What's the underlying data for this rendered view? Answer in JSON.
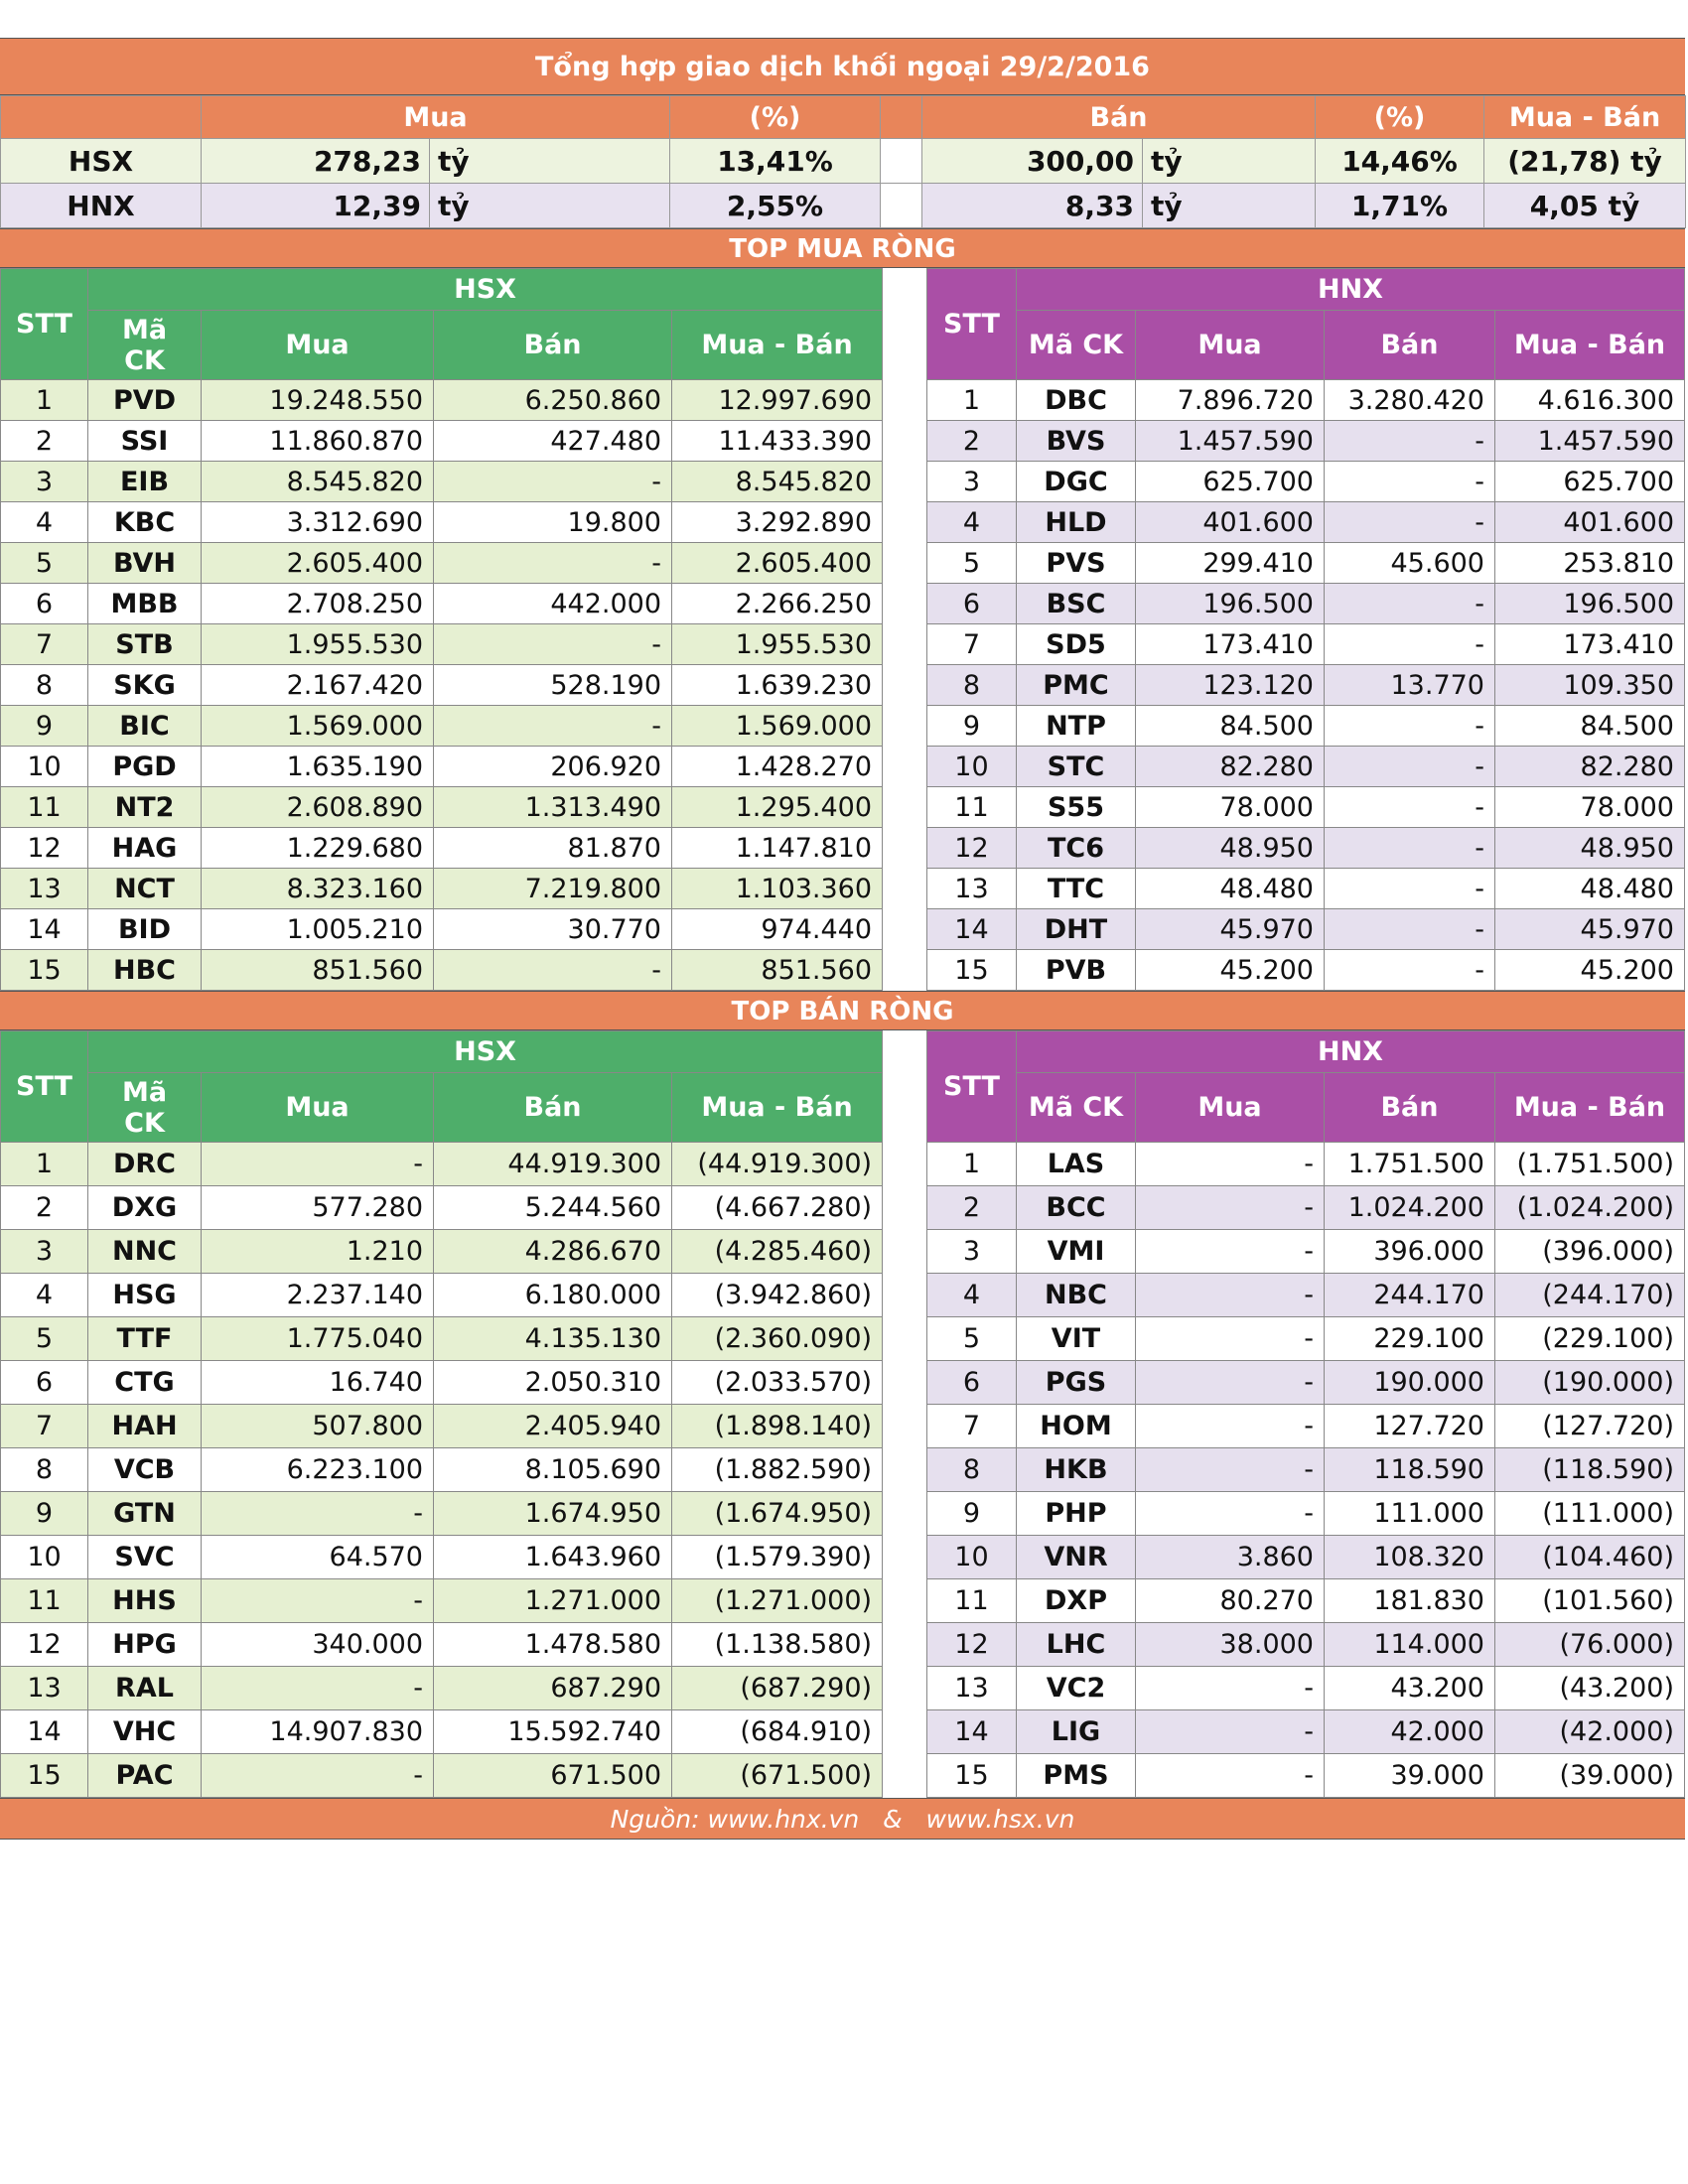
{
  "title": "Tổng hợp giao dịch khối ngoại 29/2/2016",
  "summary": {
    "headers": {
      "mua": "Mua",
      "pct1": "(%)",
      "ban": "Bán",
      "pct2": "(%)",
      "net": "Mua - Bán"
    },
    "hsx": {
      "label": "HSX",
      "mua": "278,23",
      "mua_unit": "tỷ",
      "mua_pct": "13,41%",
      "ban": "300,00",
      "ban_unit": "tỷ",
      "ban_pct": "14,46%",
      "net": "(21,78) tỷ"
    },
    "hnx": {
      "label": "HNX",
      "mua": "12,39",
      "mua_unit": "tỷ",
      "mua_pct": "2,55%",
      "ban": "8,33",
      "ban_unit": "tỷ",
      "ban_pct": "1,71%",
      "net": "4,05 tỷ"
    }
  },
  "top_buy": {
    "title": "TOP MUA RÒNG",
    "hsx": {
      "exchange": "HSX",
      "headers": {
        "stt": "STT",
        "code": "Mã CK",
        "mua": "Mua",
        "ban": "Bán",
        "net": "Mua - Bán"
      },
      "rows": [
        [
          "1",
          "PVD",
          "19.248.550",
          "6.250.860",
          "12.997.690"
        ],
        [
          "2",
          "SSI",
          "11.860.870",
          "427.480",
          "11.433.390"
        ],
        [
          "3",
          "EIB",
          "8.545.820",
          "-",
          "8.545.820"
        ],
        [
          "4",
          "KBC",
          "3.312.690",
          "19.800",
          "3.292.890"
        ],
        [
          "5",
          "BVH",
          "2.605.400",
          "-",
          "2.605.400"
        ],
        [
          "6",
          "MBB",
          "2.708.250",
          "442.000",
          "2.266.250"
        ],
        [
          "7",
          "STB",
          "1.955.530",
          "-",
          "1.955.530"
        ],
        [
          "8",
          "SKG",
          "2.167.420",
          "528.190",
          "1.639.230"
        ],
        [
          "9",
          "BIC",
          "1.569.000",
          "-",
          "1.569.000"
        ],
        [
          "10",
          "PGD",
          "1.635.190",
          "206.920",
          "1.428.270"
        ],
        [
          "11",
          "NT2",
          "2.608.890",
          "1.313.490",
          "1.295.400"
        ],
        [
          "12",
          "HAG",
          "1.229.680",
          "81.870",
          "1.147.810"
        ],
        [
          "13",
          "NCT",
          "8.323.160",
          "7.219.800",
          "1.103.360"
        ],
        [
          "14",
          "BID",
          "1.005.210",
          "30.770",
          "974.440"
        ],
        [
          "15",
          "HBC",
          "851.560",
          "-",
          "851.560"
        ]
      ]
    },
    "hnx": {
      "exchange": "HNX",
      "headers": {
        "stt": "STT",
        "code": "Mã CK",
        "mua": "Mua",
        "ban": "Bán",
        "net": "Mua - Bán"
      },
      "rows": [
        [
          "1",
          "DBC",
          "7.896.720",
          "3.280.420",
          "4.616.300"
        ],
        [
          "2",
          "BVS",
          "1.457.590",
          "-",
          "1.457.590"
        ],
        [
          "3",
          "DGC",
          "625.700",
          "-",
          "625.700"
        ],
        [
          "4",
          "HLD",
          "401.600",
          "-",
          "401.600"
        ],
        [
          "5",
          "PVS",
          "299.410",
          "45.600",
          "253.810"
        ],
        [
          "6",
          "BSC",
          "196.500",
          "-",
          "196.500"
        ],
        [
          "7",
          "SD5",
          "173.410",
          "-",
          "173.410"
        ],
        [
          "8",
          "PMC",
          "123.120",
          "13.770",
          "109.350"
        ],
        [
          "9",
          "NTP",
          "84.500",
          "-",
          "84.500"
        ],
        [
          "10",
          "STC",
          "82.280",
          "-",
          "82.280"
        ],
        [
          "11",
          "S55",
          "78.000",
          "-",
          "78.000"
        ],
        [
          "12",
          "TC6",
          "48.950",
          "-",
          "48.950"
        ],
        [
          "13",
          "TTC",
          "48.480",
          "-",
          "48.480"
        ],
        [
          "14",
          "DHT",
          "45.970",
          "-",
          "45.970"
        ],
        [
          "15",
          "PVB",
          "45.200",
          "-",
          "45.200"
        ]
      ]
    }
  },
  "top_sell": {
    "title": "TOP BÁN RÒNG",
    "hsx": {
      "exchange": "HSX",
      "headers": {
        "stt": "STT",
        "code": "Mã CK",
        "mua": "Mua",
        "ban": "Bán",
        "net": "Mua - Bán"
      },
      "rows": [
        [
          "1",
          "DRC",
          "-",
          "44.919.300",
          "(44.919.300)"
        ],
        [
          "2",
          "DXG",
          "577.280",
          "5.244.560",
          "(4.667.280)"
        ],
        [
          "3",
          "NNC",
          "1.210",
          "4.286.670",
          "(4.285.460)"
        ],
        [
          "4",
          "HSG",
          "2.237.140",
          "6.180.000",
          "(3.942.860)"
        ],
        [
          "5",
          "TTF",
          "1.775.040",
          "4.135.130",
          "(2.360.090)"
        ],
        [
          "6",
          "CTG",
          "16.740",
          "2.050.310",
          "(2.033.570)"
        ],
        [
          "7",
          "HAH",
          "507.800",
          "2.405.940",
          "(1.898.140)"
        ],
        [
          "8",
          "VCB",
          "6.223.100",
          "8.105.690",
          "(1.882.590)"
        ],
        [
          "9",
          "GTN",
          "-",
          "1.674.950",
          "(1.674.950)"
        ],
        [
          "10",
          "SVC",
          "64.570",
          "1.643.960",
          "(1.579.390)"
        ],
        [
          "11",
          "HHS",
          "-",
          "1.271.000",
          "(1.271.000)"
        ],
        [
          "12",
          "HPG",
          "340.000",
          "1.478.580",
          "(1.138.580)"
        ],
        [
          "13",
          "RAL",
          "-",
          "687.290",
          "(687.290)"
        ],
        [
          "14",
          "VHC",
          "14.907.830",
          "15.592.740",
          "(684.910)"
        ],
        [
          "15",
          "PAC",
          "-",
          "671.500",
          "(671.500)"
        ]
      ]
    },
    "hnx": {
      "exchange": "HNX",
      "headers": {
        "stt": "STT",
        "code": "Mã CK",
        "mua": "Mua",
        "ban": "Bán",
        "net": "Mua - Bán"
      },
      "rows": [
        [
          "1",
          "LAS",
          "-",
          "1.751.500",
          "(1.751.500)"
        ],
        [
          "2",
          "BCC",
          "-",
          "1.024.200",
          "(1.024.200)"
        ],
        [
          "3",
          "VMI",
          "-",
          "396.000",
          "(396.000)"
        ],
        [
          "4",
          "NBC",
          "-",
          "244.170",
          "(244.170)"
        ],
        [
          "5",
          "VIT",
          "-",
          "229.100",
          "(229.100)"
        ],
        [
          "6",
          "PGS",
          "-",
          "190.000",
          "(190.000)"
        ],
        [
          "7",
          "HOM",
          "-",
          "127.720",
          "(127.720)"
        ],
        [
          "8",
          "HKB",
          "-",
          "118.590",
          "(118.590)"
        ],
        [
          "9",
          "PHP",
          "-",
          "111.000",
          "(111.000)"
        ],
        [
          "10",
          "VNR",
          "3.860",
          "108.320",
          "(104.460)"
        ],
        [
          "11",
          "DXP",
          "80.270",
          "181.830",
          "(101.560)"
        ],
        [
          "12",
          "LHC",
          "38.000",
          "114.000",
          "(76.000)"
        ],
        [
          "13",
          "VC2",
          "-",
          "43.200",
          "(43.200)"
        ],
        [
          "14",
          "LIG",
          "-",
          "42.000",
          "(42.000)"
        ],
        [
          "15",
          "PMS",
          "-",
          "39.000",
          "(39.000)"
        ]
      ]
    }
  },
  "footer": "Nguồn: www.hnx.vn   &   www.hsx.vn",
  "colors": {
    "orange": "#E8855A",
    "green": "#4EAE6A",
    "purple": "#AA4FA6",
    "light_green": "#E6F0D2",
    "light_purple": "#E6E0EE"
  }
}
